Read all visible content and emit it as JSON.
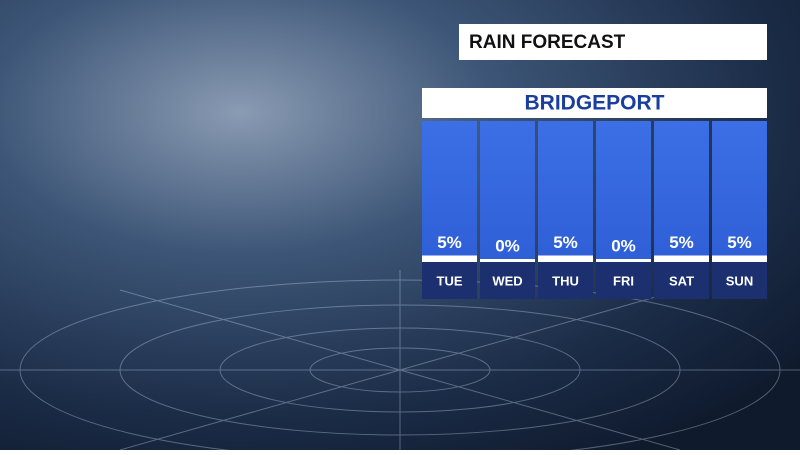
{
  "chart_data": {
    "type": "bar",
    "title": "RAIN FORECAST",
    "subtitle": "BRIDGEPORT",
    "categories": [
      "TUE",
      "WED",
      "THU",
      "FRI",
      "SAT",
      "SUN"
    ],
    "values": [
      5,
      0,
      5,
      0,
      5,
      5
    ],
    "value_labels": [
      "5%",
      "0%",
      "5%",
      "0%",
      "5%",
      "5%"
    ],
    "color": "#ffffff"
  }
}
